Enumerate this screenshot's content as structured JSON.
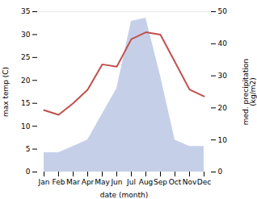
{
  "chart_data": {
    "type": "line",
    "xlabel": "date (month)",
    "ylabel": "max temp (C)",
    "y2label": "med. precipitation\n(kg/m2)",
    "categories": [
      "Jan",
      "Feb",
      "Mar",
      "Apr",
      "May",
      "Jun",
      "Jul",
      "Aug",
      "Sep",
      "Oct",
      "Nov",
      "Dec"
    ],
    "series": [
      {
        "type": "area",
        "axis": "y2",
        "color": "#c5d0e8",
        "values": [
          6,
          6,
          8,
          10,
          18,
          26,
          47,
          48,
          30,
          10,
          8,
          8
        ]
      },
      {
        "type": "line",
        "color": "#c0504d",
        "values": [
          13.5,
          12.5,
          15.0,
          18.0,
          23.5,
          23.0,
          29.0,
          30.5,
          30.0,
          24.0,
          18.0,
          16.5
        ]
      }
    ],
    "ylim": [
      0,
      35
    ],
    "yticks": [
      0,
      5,
      10,
      15,
      20,
      25,
      30,
      35
    ],
    "y2lim": [
      0,
      50
    ],
    "y2ticks": [
      0,
      10,
      20,
      30,
      40,
      50
    ]
  }
}
